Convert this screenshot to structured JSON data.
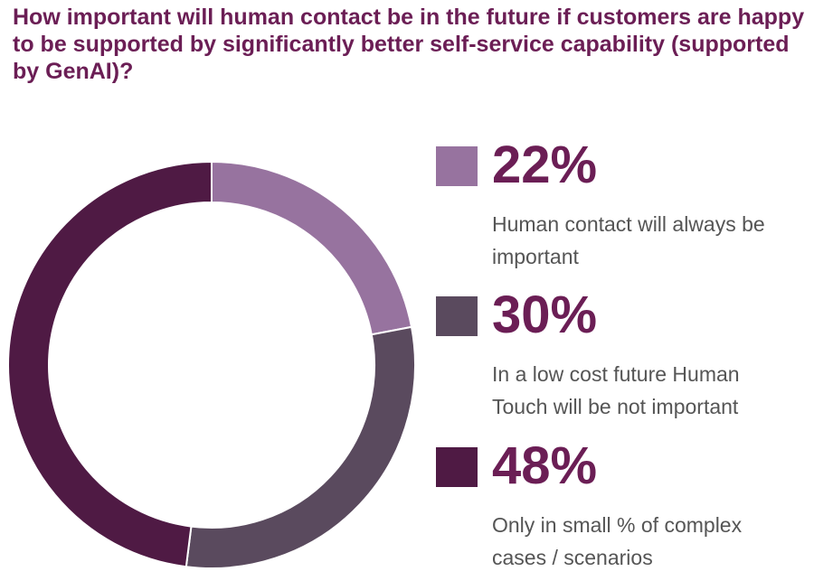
{
  "chart_data": {
    "type": "pie",
    "title": "How important will human contact be in the future if customers are happy to be supported by significantly better self-service capability (supported by GenAI)?",
    "slices": [
      {
        "value": 22,
        "value_label": "22%",
        "label": "Human contact will always be important",
        "color": "#97739f"
      },
      {
        "value": 30,
        "value_label": "30%",
        "label": "In a low cost future Human Touch will be not important",
        "color": "#5a4a5e"
      },
      {
        "value": 48,
        "value_label": "48%",
        "label": "Only in small % of complex cases / scenarios",
        "color": "#4f1a44"
      }
    ],
    "legend_position": "right"
  }
}
